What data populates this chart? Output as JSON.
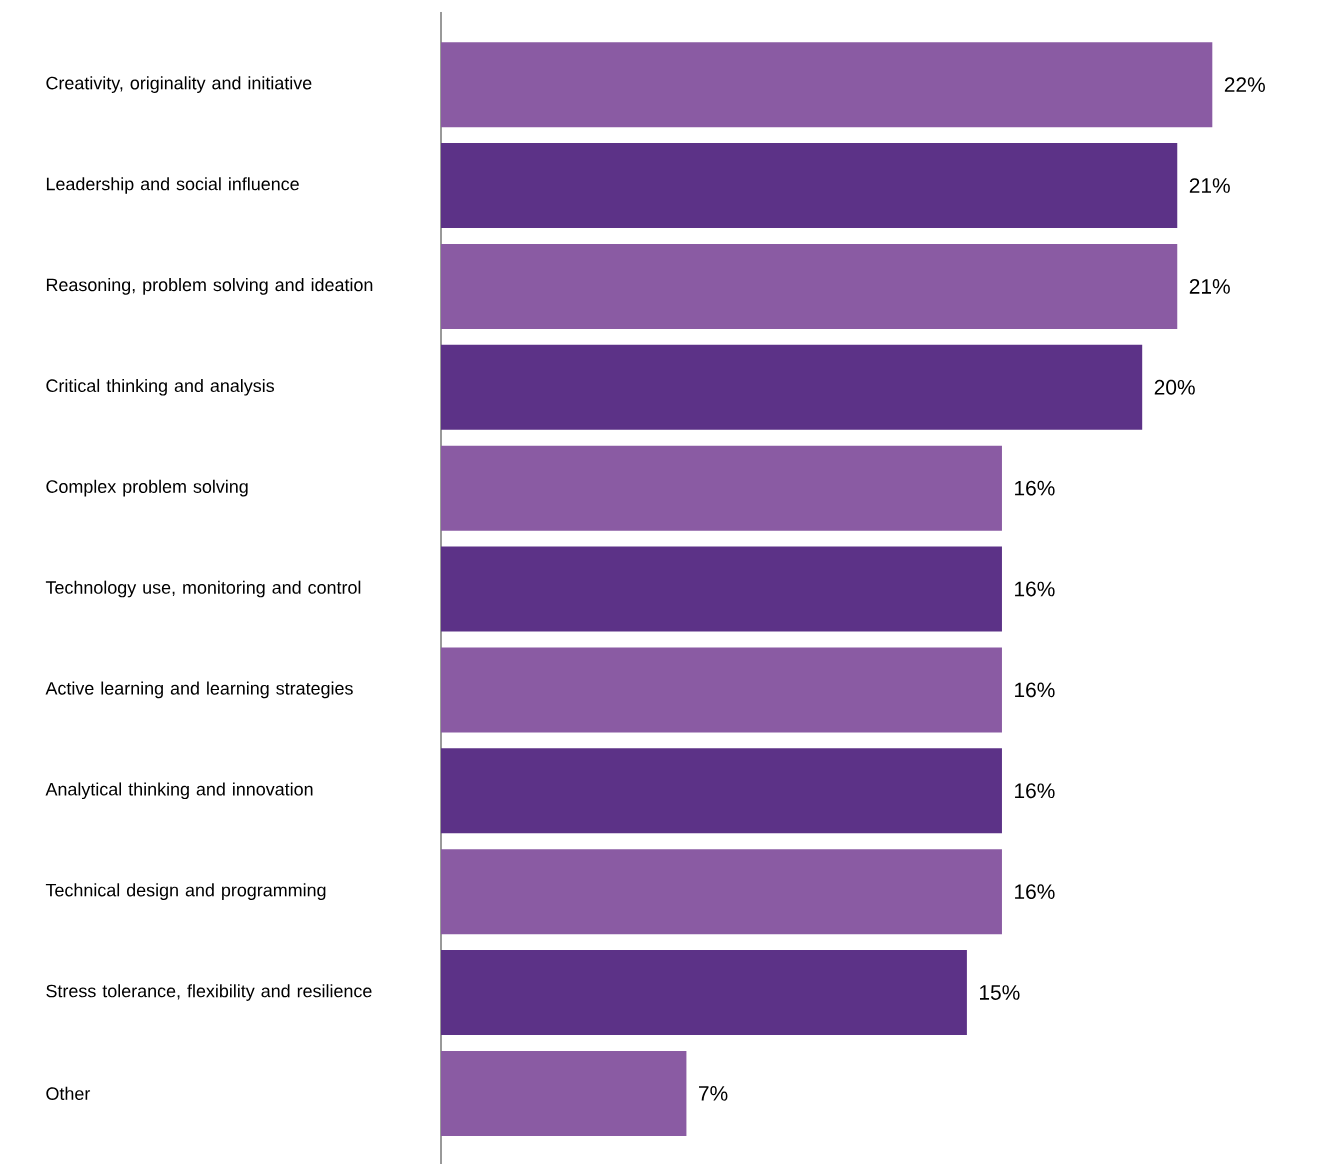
{
  "chart_data": {
    "type": "bar",
    "orientation": "horizontal",
    "categories": [
      "Creativity, originality and initiative",
      "Leadership and social influence",
      "Reasoning, problem solving and ideation",
      "Critical thinking and analysis",
      "Complex problem solving",
      "Technology use, monitoring and control",
      "Active learning and learning strategies",
      "Analytical thinking and innovation",
      "Technical design and programming",
      "Stress tolerance, flexibility and resilience",
      "Other"
    ],
    "values": [
      22,
      21,
      21,
      20,
      16,
      16,
      16,
      16,
      16,
      15,
      7
    ],
    "value_labels": [
      "22%",
      "21%",
      "21%",
      "20%",
      "16%",
      "16%",
      "16%",
      "16%",
      "16%",
      "15%",
      "7%"
    ],
    "colors": [
      "#8a5ba3",
      "#5c3287",
      "#8a5ba3",
      "#5c3287",
      "#8a5ba3",
      "#5c3287",
      "#8a5ba3",
      "#5c3287",
      "#8a5ba3",
      "#5c3287",
      "#8a5ba3"
    ],
    "grid": false
  }
}
